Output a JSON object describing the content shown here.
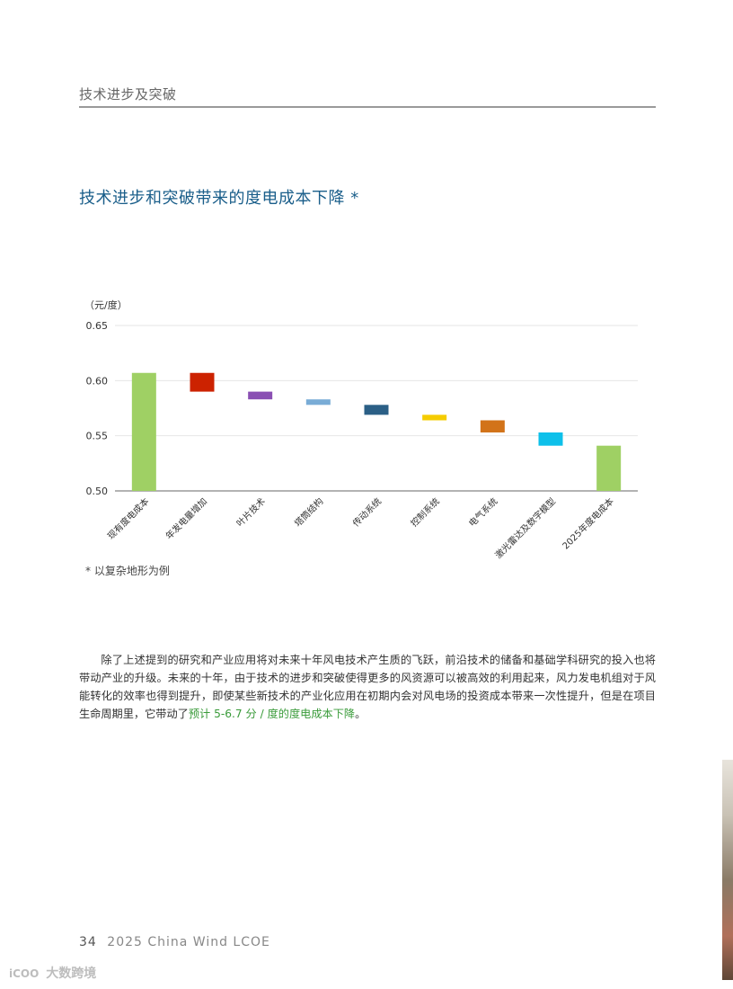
{
  "header": {
    "section_title": "技术进步及突破"
  },
  "chart": {
    "title": "技术进步和突破带来的度电成本下降 *",
    "footnote": "* 以复杂地形为例"
  },
  "chart_data": {
    "type": "bar",
    "subtype": "waterfall",
    "unit_label": "（元/度）",
    "ylim": [
      0.5,
      0.65
    ],
    "yticks": [
      "0.65",
      "0.60",
      "0.55",
      "0.50"
    ],
    "ytick_values": [
      0.65,
      0.6,
      0.55,
      0.5
    ],
    "grid": true,
    "categories": [
      "现有度电成本",
      "年发电量增加",
      "叶片技术",
      "塔筒结构",
      "传动系统",
      "控制系统",
      "电气系统",
      "激光雷达及数字模型",
      "2025年度电成本"
    ],
    "bars": [
      {
        "start": 0.5,
        "end": 0.607,
        "color": "#9fd064",
        "kind": "total"
      },
      {
        "start": 0.607,
        "end": 0.59,
        "color": "#cc2200",
        "kind": "decrease"
      },
      {
        "start": 0.59,
        "end": 0.583,
        "color": "#8a4fb3",
        "kind": "decrease"
      },
      {
        "start": 0.583,
        "end": 0.578,
        "color": "#79acd6",
        "kind": "decrease"
      },
      {
        "start": 0.578,
        "end": 0.569,
        "color": "#2b5f86",
        "kind": "decrease"
      },
      {
        "start": 0.569,
        "end": 0.564,
        "color": "#f5cc00",
        "kind": "decrease"
      },
      {
        "start": 0.564,
        "end": 0.553,
        "color": "#d27319",
        "kind": "decrease"
      },
      {
        "start": 0.553,
        "end": 0.541,
        "color": "#0ec0ea",
        "kind": "decrease"
      },
      {
        "start": 0.5,
        "end": 0.541,
        "color": "#9fd064",
        "kind": "total"
      }
    ]
  },
  "body": {
    "paragraph": "除了上述提到的研究和产业应用将对未来十年风电技术产生质的飞跃，前沿技术的储备和基础学科研究的投入也将带动产业的升级。未来的十年，由于技术的进步和突破使得更多的风资源可以被高效的利用起来，风力发电机组对于风能转化的效率也得到提升，即使某些新技术的产业化应用在初期内会对风电场的投资成本带来一次性提升，但是在项目生命周期里，它带动了",
    "highlight": "预计 5-6.7 分 / 度的度电成本下降",
    "ending": "。"
  },
  "footer": {
    "page_number": "34",
    "publication": "2025 China Wind LCOE"
  },
  "watermark": {
    "logo": "iCOO",
    "text": "大数跨境"
  }
}
